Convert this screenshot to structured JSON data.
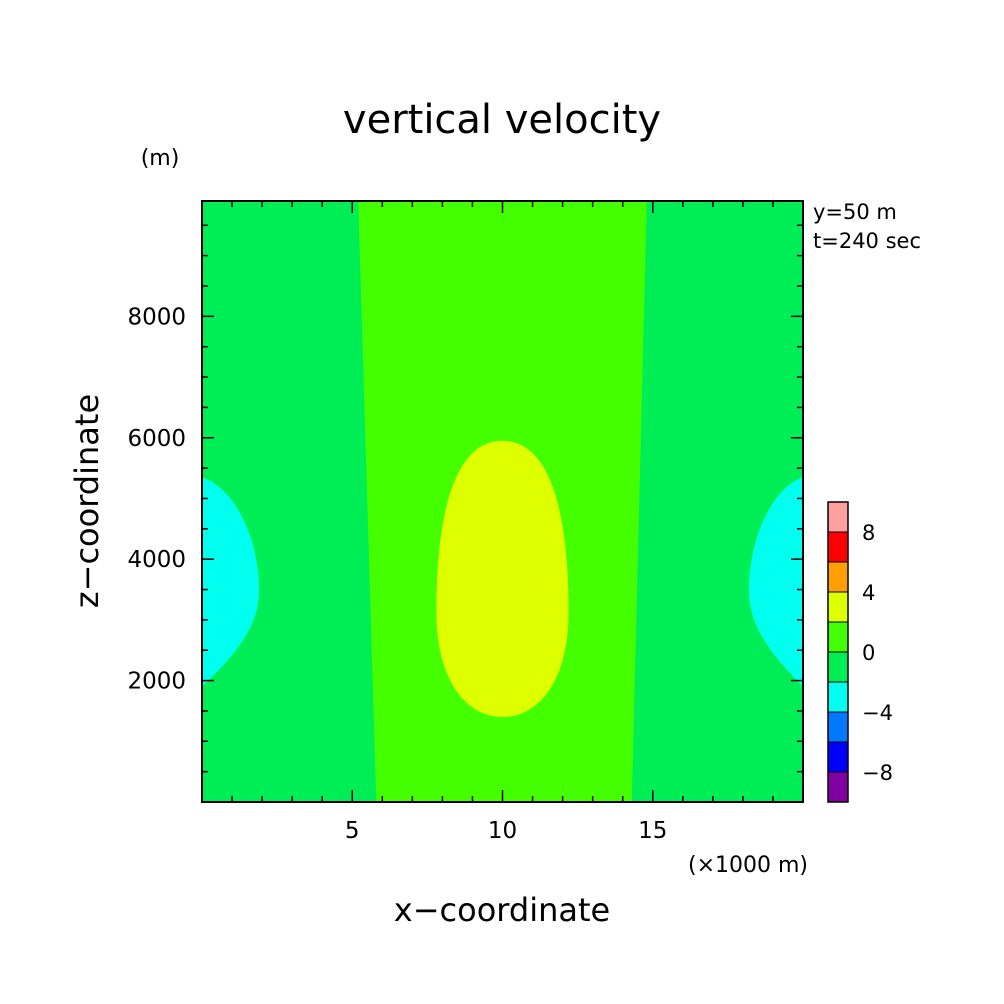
{
  "chart_data": {
    "type": "heatmap",
    "title": "vertical velocity",
    "xlabel": "x−coordinate",
    "ylabel": "z−coordinate",
    "x_unit": "(×1000 m)",
    "y_unit": "(m)",
    "info_lines": [
      "y=50 m",
      "t=240 sec"
    ],
    "xlim": [
      0,
      20
    ],
    "ylim": [
      0,
      9900
    ],
    "x_ticks": [
      5,
      10,
      15
    ],
    "y_ticks": [
      2000,
      4000,
      6000,
      8000
    ],
    "colorbar": {
      "levels": [
        -10,
        -8,
        -6,
        -4,
        -2,
        0,
        2,
        4,
        6,
        8,
        10
      ],
      "colors": [
        "#8000a0",
        "#0000ff",
        "#0078ff",
        "#00ffee",
        "#00ee55",
        "#44ff00",
        "#ddff00",
        "#ffa000",
        "#ff0000",
        "#ffa0a0"
      ],
      "labels": [
        -8,
        -4,
        0,
        4,
        8
      ]
    },
    "regions": [
      {
        "name": "updraft-band",
        "range": [
          0,
          2
        ],
        "x_bottom": [
          5.8,
          14.3
        ],
        "x_top": [
          5.2,
          14.8
        ]
      },
      {
        "name": "updraft-core",
        "range": [
          2,
          4
        ],
        "center_x": 10.0,
        "z_range": [
          1400,
          5950
        ],
        "half_width": 2.2
      },
      {
        "name": "downdraft-left",
        "range": [
          -4,
          -2
        ],
        "edge_x": 0,
        "z_range": [
          1900,
          5350
        ],
        "max_extent_x": 1.9
      },
      {
        "name": "downdraft-right",
        "range": [
          -4,
          -2
        ],
        "edge_x": 20,
        "z_range": [
          1900,
          5350
        ],
        "max_extent_x": 1.8
      }
    ]
  }
}
